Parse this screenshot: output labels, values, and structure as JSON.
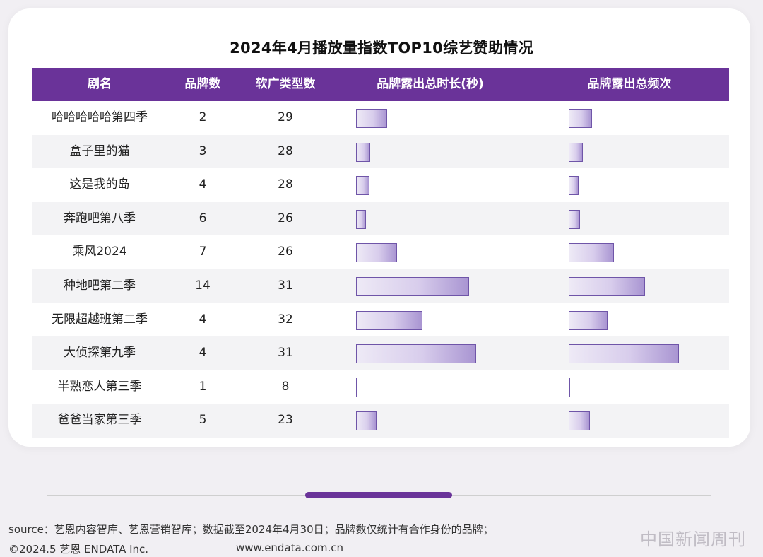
{
  "chart_data": {
    "type": "table",
    "title": "2024年4月播放量指数TOP10综艺赞助情况",
    "columns": [
      "剧名",
      "品牌数",
      "软广类型数",
      "品牌露出总时长(秒)",
      "品牌露出总频次"
    ],
    "rows": [
      {
        "name": "哈哈哈哈哈第四季",
        "brands": "2",
        "ad_types": "29",
        "duration": 0.26,
        "frequency": 0.21
      },
      {
        "name": "盒子里的猫",
        "brands": "3",
        "ad_types": "28",
        "duration": 0.12,
        "frequency": 0.13
      },
      {
        "name": "这是我的岛",
        "brands": "4",
        "ad_types": "28",
        "duration": 0.11,
        "frequency": 0.09
      },
      {
        "name": "奔跑吧第八季",
        "brands": "6",
        "ad_types": "26",
        "duration": 0.08,
        "frequency": 0.1
      },
      {
        "name": "乘风2024",
        "brands": "7",
        "ad_types": "26",
        "duration": 0.34,
        "frequency": 0.41
      },
      {
        "name": "种地吧第二季",
        "brands": "14",
        "ad_types": "31",
        "duration": 0.94,
        "frequency": 0.69
      },
      {
        "name": "无限超越班第二季",
        "brands": "4",
        "ad_types": "32",
        "duration": 0.55,
        "frequency": 0.35
      },
      {
        "name": "大侦探第九季",
        "brands": "4",
        "ad_types": "31",
        "duration": 1.0,
        "frequency": 1.0
      },
      {
        "name": "半熟恋人第三季",
        "brands": "1",
        "ad_types": "8",
        "duration": 0.0,
        "frequency": 0.0
      },
      {
        "name": "爸爸当家第三季",
        "brands": "5",
        "ad_types": "23",
        "duration": 0.17,
        "frequency": 0.19
      }
    ]
  },
  "colors": {
    "header": "#6a3399",
    "bar_border": "#6f55a8"
  },
  "footer": {
    "source": "source：艺恩内容智库、艺恩营销智库；数据截至2024年4月30日；品牌数仅统计有合作身份的品牌；",
    "copyright": "©2024.5 艺恩 ENDATA Inc.",
    "website": "www.endata.com.cn"
  },
  "watermark": "中国新闻周刊"
}
